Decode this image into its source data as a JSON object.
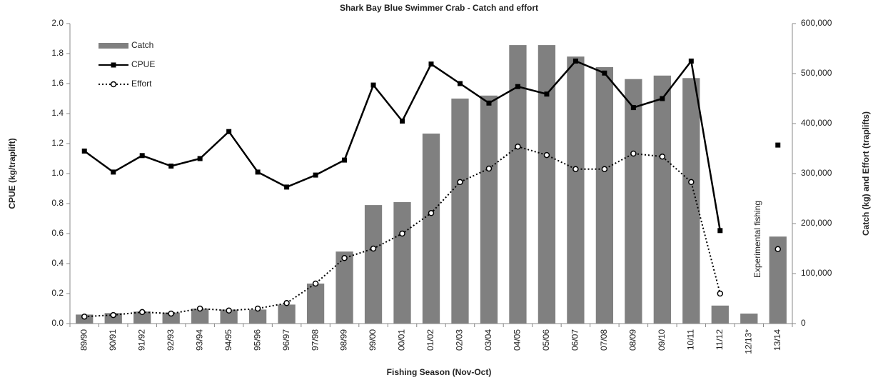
{
  "chart_data": {
    "type": "combo",
    "title": "Shark Bay Blue Swimmer Crab - Catch and effort",
    "x_label": "Fishing Season (Nov-Oct)",
    "y_label": "CPUE (kg/traplift)",
    "y2_label": "Catch (kg) and Effort (traplifts)",
    "annotation": "Experimental fishing",
    "categories": [
      "89/90",
      "90/91",
      "91/92",
      "92/93",
      "93/94",
      "94/95",
      "95/96",
      "96/97",
      "97/98",
      "98/99",
      "99/00",
      "00/01",
      "01/02",
      "02/03",
      "03/04",
      "04/05",
      "05/06",
      "06/07",
      "07/08",
      "08/09",
      "09/10",
      "10/11",
      "11/12",
      "12/13*",
      "13/14"
    ],
    "ylim": [
      0,
      2
    ],
    "yticks": [
      {
        "value": 0,
        "label": "0.0"
      },
      0.2,
      0.4,
      0.6,
      0.8,
      {
        "value": 1,
        "label": "1.0"
      },
      1.2,
      1.4,
      1.6,
      1.8,
      {
        "value": 2,
        "label": "2.0"
      }
    ],
    "y2lim": [
      0,
      600000
    ],
    "y2ticks": [
      0,
      {
        "value": 100000,
        "label": "100,000"
      },
      {
        "value": 200000,
        "label": "200,000"
      },
      {
        "value": 300000,
        "label": "300,000"
      },
      {
        "value": 400000,
        "label": "400,000"
      },
      {
        "value": 500000,
        "label": "500,000"
      },
      {
        "value": 600000,
        "label": "600,000"
      }
    ],
    "grid": false,
    "legend": "upper left",
    "series": [
      {
        "name": "Catch",
        "type": "bar",
        "axis": "y2",
        "color": "#808080",
        "values": [
          18000,
          21000,
          24000,
          22000,
          30000,
          28000,
          28000,
          38000,
          80000,
          144000,
          237000,
          243000,
          380000,
          450000,
          456000,
          557000,
          557000,
          534000,
          513000,
          489000,
          496000,
          491000,
          36000,
          20000,
          174000
        ]
      },
      {
        "name": "CPUE",
        "type": "line",
        "color": "#000000",
        "line_style": "solid",
        "marker": "square",
        "values": [
          1.15,
          1.01,
          1.12,
          1.05,
          1.1,
          1.28,
          1.01,
          0.91,
          0.99,
          1.09,
          1.59,
          1.35,
          1.73,
          1.6,
          1.47,
          1.58,
          1.53,
          1.75,
          1.67,
          1.44,
          1.5,
          1.75,
          0.62,
          null,
          1.19
        ]
      },
      {
        "name": "Effort",
        "type": "line",
        "axis": "y2",
        "color": "#000000",
        "line_style": "dotted",
        "marker": "circle",
        "values": [
          14000,
          17000,
          23000,
          20000,
          30000,
          26000,
          30000,
          41000,
          80000,
          131000,
          150000,
          180000,
          221000,
          283000,
          310000,
          354000,
          337000,
          309000,
          309000,
          340000,
          334000,
          283000,
          60000,
          null,
          149000
        ]
      }
    ]
  }
}
